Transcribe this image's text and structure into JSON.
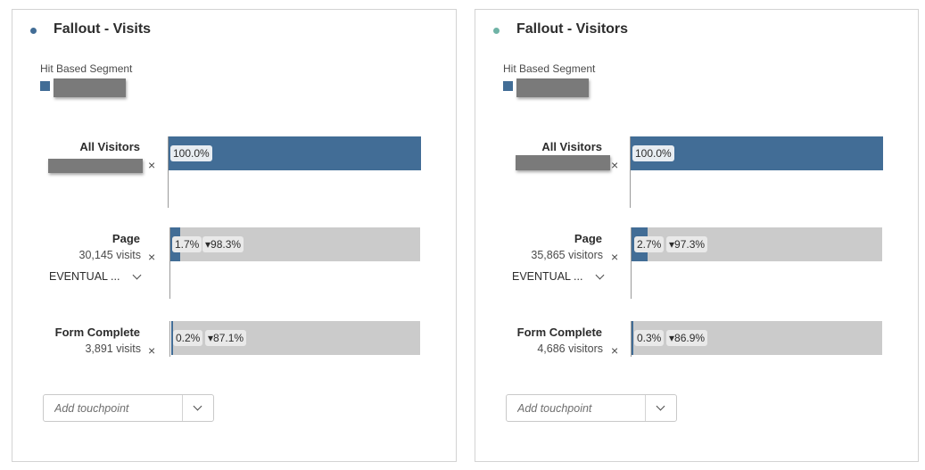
{
  "colors": {
    "segment_blue": "#426d96",
    "visitors_dot": "#6fb3a6",
    "bar_gray": "#cbcbcb"
  },
  "panels": [
    {
      "title": "Fallout - Visits",
      "segment_label": "Hit Based Segment",
      "all_visitors_label": "All Visitors",
      "all_visitors_pct": "100.0%",
      "steps": [
        {
          "name": "Page",
          "count": "30,145 visits",
          "pct": "1.7%",
          "fallout": "▾98.3%",
          "fill": 0.017
        },
        {
          "name": "Form Complete",
          "count": "3,891 visits",
          "pct": "0.2%",
          "fallout": "▾87.1%",
          "fill": 0.002
        }
      ],
      "eventual_label": "EVENTUAL ...",
      "add_placeholder": "Add touchpoint"
    },
    {
      "title": "Fallout - Visitors",
      "segment_label": "Hit Based Segment",
      "all_visitors_label": "All Visitors",
      "all_visitors_pct": "100.0%",
      "steps": [
        {
          "name": "Page",
          "count": "35,865 visitors",
          "pct": "2.7%",
          "fallout": "▾97.3%",
          "fill": 0.027
        },
        {
          "name": "Form Complete",
          "count": "4,686 visitors",
          "pct": "0.3%",
          "fallout": "▾86.9%",
          "fill": 0.003
        }
      ],
      "eventual_label": "EVENTUAL ...",
      "add_placeholder": "Add touchpoint"
    }
  ],
  "icons": {
    "remove": "×",
    "dropdown": "chevron-down-icon"
  }
}
